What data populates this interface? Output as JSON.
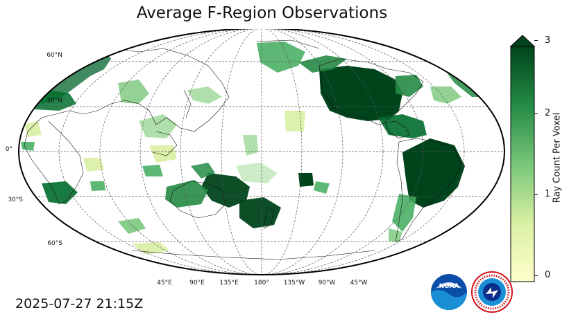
{
  "title": "Average F-Region Observations",
  "timestamp": "2025-07-27 21:15Z",
  "lat_labels": [
    "60°N",
    "30°N",
    "0°",
    "30°S",
    "60°S"
  ],
  "lon_labels": [
    "45°E",
    "90°E",
    "135°E",
    "180°",
    "135°W",
    "90°W",
    "45°W"
  ],
  "colorbar": {
    "label": "Ray Count Per Voxel",
    "ticks": [
      "0",
      "1",
      "2",
      "3"
    ],
    "min": 0,
    "max": 3,
    "extend": "max",
    "colors": {
      "low": "#ffffcc",
      "mid": "#78c679",
      "high": "#00441b"
    }
  },
  "logos": {
    "noaa": "NOAA",
    "nws": "NATIONAL WEATHER SERVICE"
  }
}
